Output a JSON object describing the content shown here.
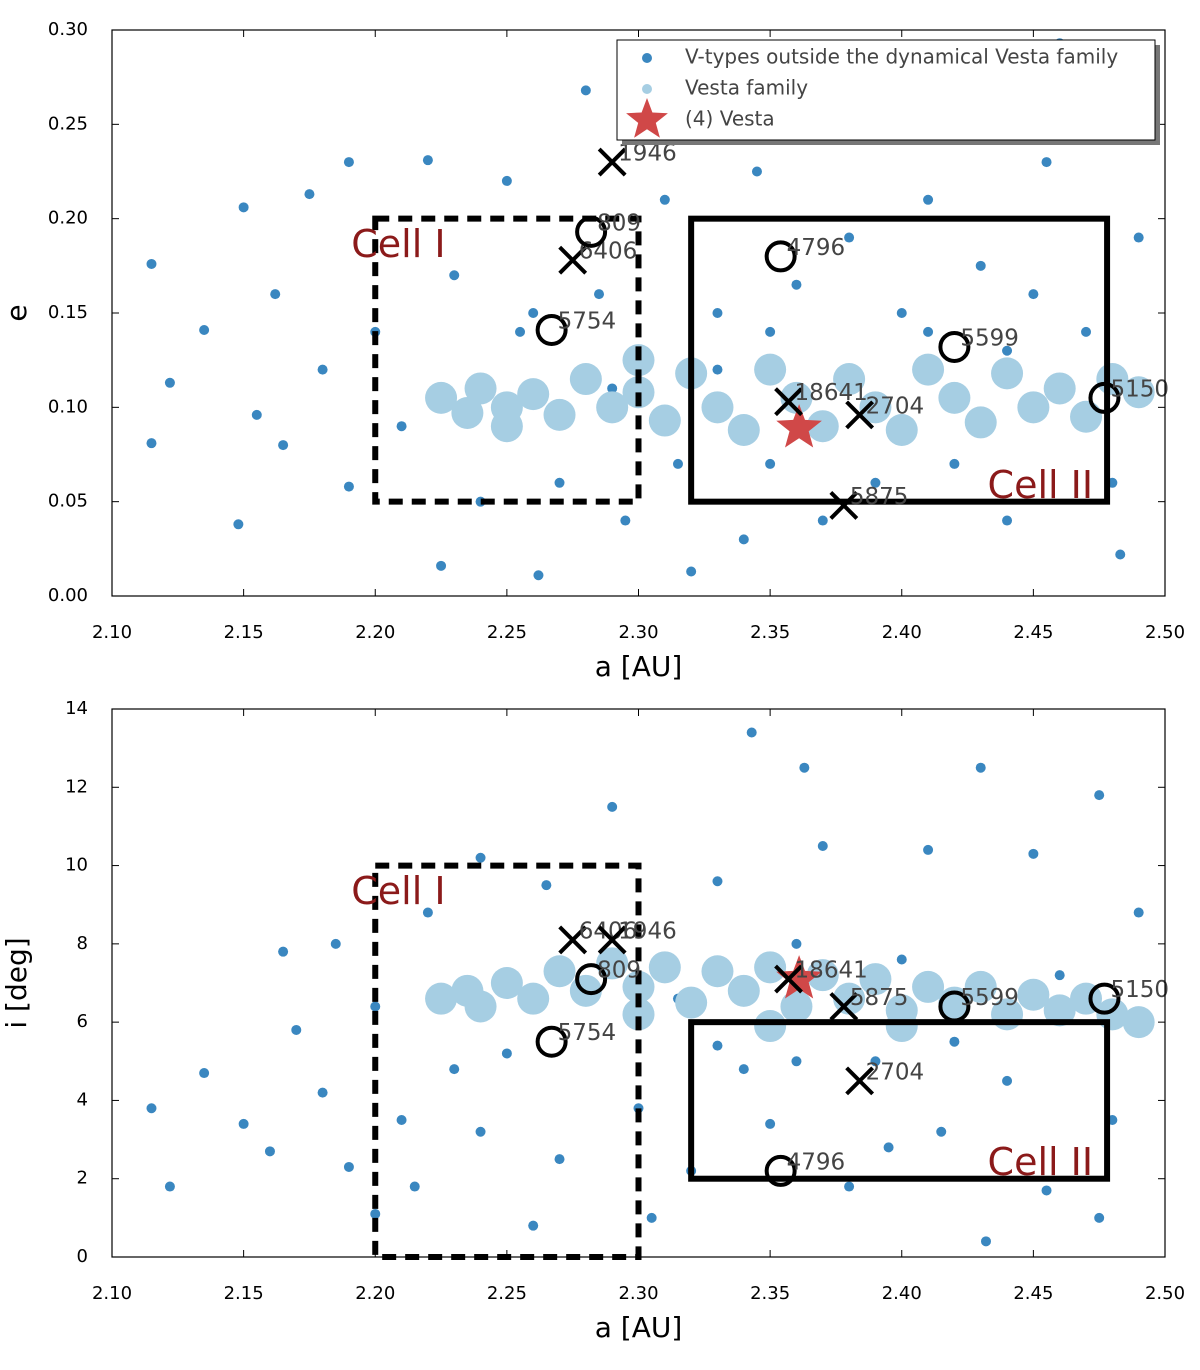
{
  "chart_data": [
    {
      "type": "scatter",
      "xlabel": "a [AU]",
      "ylabel": "e",
      "xlim": [
        2.1,
        2.5
      ],
      "ylim": [
        0,
        0.3
      ],
      "xticks": [
        {
          "value": 2.1,
          "label": "2.10"
        },
        2.15,
        {
          "value": 2.2,
          "label": "2.20"
        },
        2.25,
        {
          "value": 2.3,
          "label": "2.30"
        },
        2.35,
        {
          "value": 2.4,
          "label": "2.40"
        },
        2.45,
        {
          "value": 2.5,
          "label": "2.50"
        }
      ],
      "yticks": [
        {
          "value": 0,
          "label": "0.00"
        },
        0.05,
        {
          "value": 0.1,
          "label": "0.10"
        },
        0.15,
        {
          "value": 0.2,
          "label": "0.20"
        },
        0.25,
        {
          "value": 0.3,
          "label": "0.30"
        }
      ],
      "legend": "upper right",
      "series": [
        {
          "name": "V-types outside the dynamical Vesta family",
          "color": "#3a87c0",
          "marker": "dot",
          "x": [
            2.115,
            2.115,
            2.122,
            2.135,
            2.148,
            2.15,
            2.155,
            2.162,
            2.165,
            2.175,
            2.18,
            2.19,
            2.19,
            2.2,
            2.21,
            2.22,
            2.225,
            2.23,
            2.24,
            2.25,
            2.255,
            2.262,
            2.27,
            2.28,
            2.285,
            2.295,
            2.3,
            2.31,
            2.315,
            2.32,
            2.33,
            2.34,
            2.345,
            2.35,
            2.36,
            2.37,
            2.38,
            2.39,
            2.4,
            2.41,
            2.42,
            2.43,
            2.44,
            2.45,
            2.455,
            2.46,
            2.47,
            2.48,
            2.483,
            2.49,
            2.33,
            2.41,
            2.44,
            2.29,
            2.26,
            2.35
          ],
          "y": [
            0.176,
            0.081,
            0.113,
            0.141,
            0.038,
            0.206,
            0.096,
            0.16,
            0.08,
            0.213,
            0.12,
            0.23,
            0.058,
            0.14,
            0.09,
            0.231,
            0.016,
            0.17,
            0.05,
            0.22,
            0.14,
            0.011,
            0.06,
            0.268,
            0.16,
            0.04,
            0.13,
            0.21,
            0.07,
            0.013,
            0.15,
            0.03,
            0.225,
            0.07,
            0.165,
            0.04,
            0.19,
            0.06,
            0.15,
            0.21,
            0.07,
            0.175,
            0.04,
            0.16,
            0.23,
            0.293,
            0.14,
            0.06,
            0.022,
            0.19,
            0.12,
            0.14,
            0.13,
            0.11,
            0.15,
            0.14
          ]
        },
        {
          "name": "Vesta family",
          "color": "#a6cee3",
          "marker": "cloud",
          "x": [
            2.225,
            2.235,
            2.24,
            2.25,
            2.26,
            2.27,
            2.28,
            2.29,
            2.3,
            2.31,
            2.32,
            2.33,
            2.34,
            2.35,
            2.36,
            2.37,
            2.38,
            2.39,
            2.4,
            2.41,
            2.42,
            2.43,
            2.44,
            2.45,
            2.46,
            2.47,
            2.48,
            2.49,
            2.3,
            2.25
          ],
          "y": [
            0.105,
            0.097,
            0.11,
            0.1,
            0.107,
            0.096,
            0.115,
            0.1,
            0.108,
            0.093,
            0.118,
            0.1,
            0.088,
            0.12,
            0.105,
            0.09,
            0.115,
            0.1,
            0.088,
            0.12,
            0.105,
            0.092,
            0.118,
            0.1,
            0.11,
            0.095,
            0.115,
            0.108,
            0.125,
            0.09
          ]
        },
        {
          "name": "(4) Vesta",
          "color": "#d04848",
          "marker": "star",
          "x": [
            2.361
          ],
          "y": [
            0.089
          ]
        }
      ],
      "objects": [
        {
          "label": "1946",
          "marker": "x",
          "x": 2.29,
          "y": 0.23
        },
        {
          "label": "6406",
          "marker": "x",
          "x": 2.275,
          "y": 0.178
        },
        {
          "label": "18641",
          "marker": "x",
          "x": 2.357,
          "y": 0.103
        },
        {
          "label": "2704",
          "marker": "x",
          "x": 2.384,
          "y": 0.096
        },
        {
          "label": "5875",
          "marker": "x",
          "x": 2.378,
          "y": 0.048
        },
        {
          "label": "809",
          "marker": "o",
          "x": 2.282,
          "y": 0.193
        },
        {
          "label": "4796",
          "marker": "o",
          "x": 2.354,
          "y": 0.18
        },
        {
          "label": "5754",
          "marker": "o",
          "x": 2.267,
          "y": 0.141
        },
        {
          "label": "5599",
          "marker": "o",
          "x": 2.42,
          "y": 0.132
        },
        {
          "label": "5150",
          "marker": "o",
          "x": 2.477,
          "y": 0.105
        }
      ],
      "cells": [
        {
          "label": "Cell I",
          "style": "dashed",
          "xlim": [
            2.2,
            2.3
          ],
          "ylim": [
            0.05,
            0.2
          ]
        },
        {
          "label": "Cell II",
          "style": "solid",
          "xlim": [
            2.32,
            2.478
          ],
          "ylim": [
            0.05,
            0.2
          ]
        }
      ]
    },
    {
      "type": "scatter",
      "xlabel": "a [AU]",
      "ylabel": "i [deg]",
      "xlim": [
        2.1,
        2.5
      ],
      "ylim": [
        0,
        14
      ],
      "xticks": [
        {
          "value": 2.1,
          "label": "2.10"
        },
        2.15,
        {
          "value": 2.2,
          "label": "2.20"
        },
        2.25,
        {
          "value": 2.3,
          "label": "2.30"
        },
        2.35,
        {
          "value": 2.4,
          "label": "2.40"
        },
        2.45,
        {
          "value": 2.5,
          "label": "2.50"
        }
      ],
      "yticks": [
        0,
        2,
        4,
        6,
        8,
        10,
        12,
        14
      ],
      "series": [
        {
          "color": "#3a87c0",
          "marker": "dot",
          "x": [
            2.115,
            2.122,
            2.135,
            2.15,
            2.16,
            2.165,
            2.17,
            2.18,
            2.185,
            2.19,
            2.2,
            2.2,
            2.21,
            2.215,
            2.22,
            2.23,
            2.24,
            2.24,
            2.25,
            2.26,
            2.265,
            2.27,
            2.29,
            2.3,
            2.305,
            2.315,
            2.32,
            2.33,
            2.34,
            2.343,
            2.35,
            2.36,
            2.363,
            2.37,
            2.38,
            2.39,
            2.395,
            2.4,
            2.41,
            2.415,
            2.43,
            2.432,
            2.44,
            2.45,
            2.455,
            2.46,
            2.475,
            2.475,
            2.48,
            2.49,
            2.36,
            2.33,
            2.42
          ],
          "y": [
            3.8,
            1.8,
            4.7,
            3.4,
            2.7,
            7.8,
            5.8,
            4.2,
            8.0,
            2.3,
            6.4,
            1.1,
            3.5,
            1.8,
            8.8,
            4.8,
            10.2,
            3.2,
            5.2,
            0.8,
            9.5,
            2.5,
            11.5,
            3.8,
            1.0,
            6.6,
            2.2,
            9.6,
            4.8,
            13.4,
            3.4,
            8.0,
            12.5,
            10.5,
            1.8,
            5.0,
            2.8,
            7.6,
            10.4,
            3.2,
            12.5,
            0.4,
            4.5,
            10.3,
            1.7,
            7.2,
            11.8,
            1.0,
            3.5,
            8.8,
            5.0,
            5.4,
            5.5
          ]
        },
        {
          "color": "#a6cee3",
          "marker": "cloud",
          "x": [
            2.225,
            2.235,
            2.24,
            2.25,
            2.26,
            2.27,
            2.28,
            2.29,
            2.3,
            2.31,
            2.32,
            2.33,
            2.34,
            2.35,
            2.36,
            2.37,
            2.38,
            2.39,
            2.4,
            2.41,
            2.42,
            2.43,
            2.44,
            2.45,
            2.46,
            2.47,
            2.48,
            2.49,
            2.3,
            2.35,
            2.4
          ],
          "y": [
            6.6,
            6.8,
            6.4,
            7.0,
            6.6,
            7.3,
            6.8,
            7.5,
            6.9,
            7.4,
            6.5,
            7.3,
            6.8,
            7.4,
            6.4,
            7.2,
            6.6,
            7.1,
            6.3,
            6.9,
            6.5,
            6.9,
            6.2,
            6.7,
            6.3,
            6.6,
            6.2,
            6.0,
            6.2,
            5.9,
            5.9
          ]
        },
        {
          "color": "#d04848",
          "marker": "star",
          "x": [
            2.361
          ],
          "y": [
            7.1
          ]
        }
      ],
      "objects": [
        {
          "label": "6406",
          "marker": "x",
          "x": 2.275,
          "y": 8.1
        },
        {
          "label": "1946",
          "marker": "x",
          "x": 2.29,
          "y": 8.1
        },
        {
          "label": "18641",
          "marker": "x",
          "x": 2.357,
          "y": 7.1
        },
        {
          "label": "5875",
          "marker": "x",
          "x": 2.378,
          "y": 6.4
        },
        {
          "label": "2704",
          "marker": "x",
          "x": 2.384,
          "y": 4.5
        },
        {
          "label": "809",
          "marker": "o",
          "x": 2.282,
          "y": 7.1
        },
        {
          "label": "5754",
          "marker": "o",
          "x": 2.267,
          "y": 5.5
        },
        {
          "label": "5599",
          "marker": "o",
          "x": 2.42,
          "y": 6.4
        },
        {
          "label": "5150",
          "marker": "o",
          "x": 2.477,
          "y": 6.6
        },
        {
          "label": "4796",
          "marker": "o",
          "x": 2.354,
          "y": 2.2
        }
      ],
      "cells": [
        {
          "label": "Cell I",
          "style": "dashed",
          "xlim": [
            2.2,
            2.3
          ],
          "ylim": [
            0,
            10
          ]
        },
        {
          "label": "Cell II",
          "style": "solid",
          "xlim": [
            2.32,
            2.478
          ],
          "ylim": [
            2,
            6
          ]
        }
      ]
    }
  ]
}
